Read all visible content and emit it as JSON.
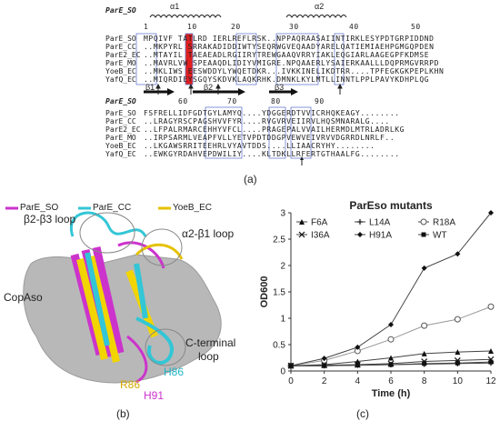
{
  "panel_a": {
    "label": "(a)",
    "block1": {
      "header_name": "ParE_SO",
      "structure": {
        "alpha1": "α1",
        "alpha2": "α2",
        "beta1": "β1",
        "beta2": "β2",
        "beta3": "β3"
      },
      "ruler": [
        "1",
        "10",
        "20",
        "30",
        "40",
        "50"
      ],
      "rows": [
        {
          "name": "ParE_SO",
          "seq": "MPQIVF TATLRD IERLREFLRSK..NPPAQRAASAIINTIRKLESYPDTGRPIDDND"
        },
        {
          "name": "ParE_CC",
          "seq": "..MKPYRL SRRAKADIDDIWTYSEQRWGVEQAADYARELQATIEMIAEHPGMGQPDEN"
        },
        {
          "name": "ParE2_EC",
          "seq": "..MTAYIL TAEAEADLRGIIRYTREWGAAQVRRYIAKLEQGIARLAAGEGPFKDMSE"
        },
        {
          "name": "ParE_MO",
          "seq": "..MAVRLVW SPEAAQDLIDIYVMIGRE.NPQAAERLYSAIERKAALLLDQPRMGVRRPD"
        },
        {
          "name": "YoeB_EC",
          "seq": "..MKLIWS EESWDDYLYWQETDKR...IVKKINELIKDTRR....TPFEGKGKPEPLKHN"
        },
        {
          "name": "YafQ_EC",
          "seq": "..MIQRDIEYSGQYSKDVKLAQKRHK.DMNKLKYLMTLLINNTLPPLPAVYKDHPLQG"
        }
      ]
    },
    "block2": {
      "header_name": "ParE_SO",
      "ruler": [
        "60",
        "70",
        "80",
        "90"
      ],
      "rows": [
        {
          "name": "ParE_SO",
          "seq": "FSFRELLIDFGDTGYLAMYQ....YDGGERDTVVICRHQKEAGY........"
        },
        {
          "name": "ParE_CC",
          "seq": "..LRAGYRSCPAGSHVVFYR....RVGVRVEIIRVLHQSMNARALG...."
        },
        {
          "name": "ParE2_EC",
          "seq": "..LFPALRMARCEHHYVFCL....PRAGEPALVVAILHERMDLMTRLADRLKG"
        },
        {
          "name": "ParE_MO",
          "seq": "..IRPSARMLVEAPFVLLYETVPDTDDGPVEWVEIVRVVDGRRDLNRLF.."
        },
        {
          "name": "YoeB_EC",
          "seq": "..LKGAWSRRITEEHRLVYAVTDDS....LLIAACRYHY........"
        },
        {
          "name": "YafQ_EC",
          "seq": "..EWKGYRDAHVEPDWILIY....KLTDKLLRFERTGTHAALFG........"
        }
      ]
    }
  },
  "panel_b": {
    "label": "(b)",
    "legend": [
      {
        "name": "ParE_SO",
        "color": "#cc33cc"
      },
      {
        "name": "ParE_CC",
        "color": "#33c6d6"
      },
      {
        "name": "YoeB_EC",
        "color": "#e6c200"
      }
    ],
    "annotations": {
      "beta_loop": "β2-β3 loop",
      "alpha_loop": "α2-β1 loop",
      "copa": "CopAso",
      "cterm_line1": "C-terminal",
      "cterm_line2": "loop",
      "h86": "H86",
      "r86": "R86",
      "h91": "H91"
    }
  },
  "panel_c": {
    "label": "(c)"
  },
  "chart_data": {
    "type": "line",
    "title": "ParEso mutants",
    "xlabel": "Time (h)",
    "ylabel": "OD600",
    "x": [
      0,
      2,
      4,
      6,
      8,
      10,
      12
    ],
    "xlim": [
      0,
      12
    ],
    "ylim": [
      0,
      3
    ],
    "xticks": [
      "0",
      "2",
      "4",
      "6",
      "8",
      "10",
      "12"
    ],
    "yticks": [
      "0",
      "0.5",
      "1",
      "1.5",
      "2",
      "2.5",
      "3"
    ],
    "legend_position": "top",
    "series": [
      {
        "name": "F6A",
        "marker": "triangle",
        "values": [
          0.1,
          0.12,
          0.18,
          0.25,
          0.33,
          0.36,
          0.38
        ]
      },
      {
        "name": "L14A",
        "marker": "plus",
        "values": [
          0.1,
          0.1,
          0.11,
          0.12,
          0.13,
          0.14,
          0.15
        ]
      },
      {
        "name": "R18A",
        "marker": "circle-open",
        "values": [
          0.1,
          0.2,
          0.38,
          0.6,
          0.86,
          0.98,
          1.22
        ]
      },
      {
        "name": "I36A",
        "marker": "x",
        "values": [
          0.1,
          0.11,
          0.12,
          0.14,
          0.18,
          0.2,
          0.22
        ]
      },
      {
        "name": "H91A",
        "marker": "diamond",
        "values": [
          0.1,
          0.24,
          0.45,
          0.88,
          1.95,
          2.22,
          3.0
        ]
      },
      {
        "name": "WT",
        "marker": "square",
        "values": [
          0.1,
          0.1,
          0.11,
          0.12,
          0.14,
          0.15,
          0.17
        ]
      }
    ]
  }
}
